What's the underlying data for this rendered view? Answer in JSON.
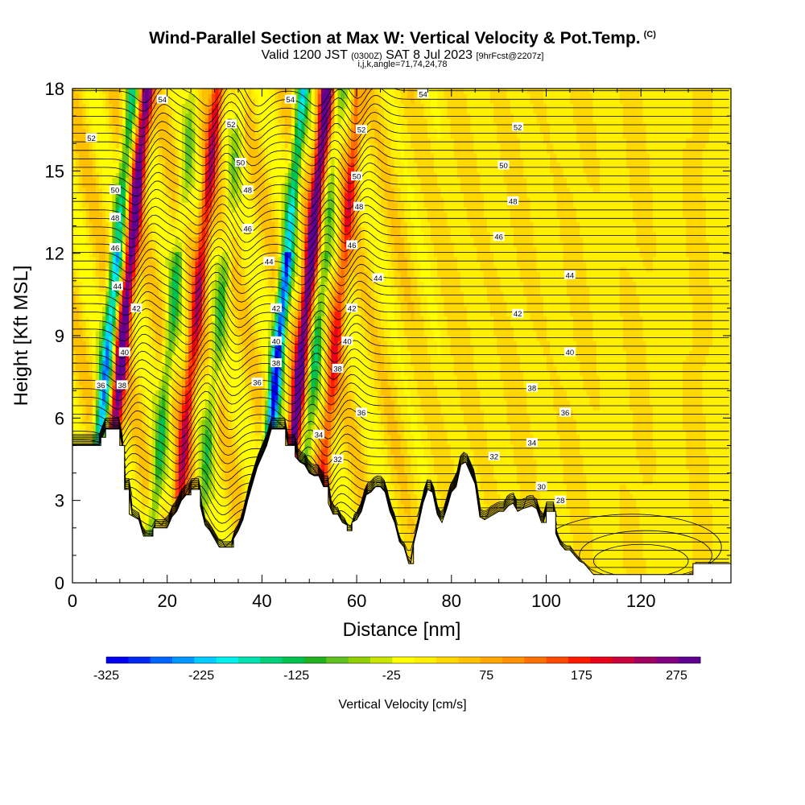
{
  "title": {
    "main": "Wind-Parallel Section at Max W: Vertical Velocity & Pot.Temp.",
    "copyright": "(C)",
    "valid_prefix": "Valid 1200 JST",
    "valid_utc": "(0300Z)",
    "valid_date": "SAT 8 Jul 2023",
    "forecast": "[9hrFcst@2207z]",
    "params": "i,j,k,angle=71,74,24,78"
  },
  "chart_data": {
    "type": "heatmap",
    "xlabel": "Distance [nm]",
    "ylabel": "Height [Kft MSL]",
    "xlim": [
      0,
      139
    ],
    "ylim": [
      0,
      18
    ],
    "xticks": [
      0,
      20,
      40,
      60,
      80,
      100,
      120
    ],
    "yticks": [
      0,
      3,
      6,
      9,
      12,
      15,
      18
    ],
    "colorbar": {
      "label": "Vertical Velocity [cm/s]",
      "range": [
        -325,
        300
      ],
      "ticks": [
        -325,
        -225,
        -125,
        -25,
        75,
        175,
        275
      ],
      "colors": [
        "#0000ee",
        "#0028f0",
        "#0064ff",
        "#0096ff",
        "#00ccff",
        "#00eeee",
        "#00e0b0",
        "#00d078",
        "#00c050",
        "#20b020",
        "#60c020",
        "#90d000",
        "#c8e400",
        "#ffff00",
        "#fff000",
        "#ffd800",
        "#ffc000",
        "#ffa800",
        "#ff9000",
        "#ff7000",
        "#ff4800",
        "#ff1a00",
        "#e8001a",
        "#c8003c",
        "#a00060",
        "#800080",
        "#600090"
      ]
    },
    "updrafts": [
      {
        "x": 12,
        "peak": 290
      },
      {
        "x": 27,
        "peak": 190
      },
      {
        "x": 50,
        "peak": 300
      },
      {
        "x": 57,
        "peak": 150
      }
    ],
    "downdrafts": [
      {
        "x": 9,
        "peak": -260
      },
      {
        "x": 22,
        "peak": -120
      },
      {
        "x": 32,
        "peak": -100
      },
      {
        "x": 45,
        "peak": -325
      },
      {
        "x": 53,
        "peak": -130
      }
    ],
    "contour_labels": [
      {
        "x": 19,
        "y": 17.6,
        "text": "54"
      },
      {
        "x": 46,
        "y": 17.6,
        "text": "54"
      },
      {
        "x": 74,
        "y": 17.8,
        "text": "54"
      },
      {
        "x": 4,
        "y": 16.2,
        "text": "52"
      },
      {
        "x": 33.5,
        "y": 16.7,
        "text": "52"
      },
      {
        "x": 61,
        "y": 16.5,
        "text": "52"
      },
      {
        "x": 94,
        "y": 16.6,
        "text": "52"
      },
      {
        "x": 35.5,
        "y": 15.3,
        "text": "50"
      },
      {
        "x": 60,
        "y": 14.8,
        "text": "50"
      },
      {
        "x": 91,
        "y": 15.2,
        "text": "50"
      },
      {
        "x": 9,
        "y": 14.3,
        "text": "50"
      },
      {
        "x": 37,
        "y": 14.3,
        "text": "48"
      },
      {
        "x": 60.5,
        "y": 13.7,
        "text": "48"
      },
      {
        "x": 93,
        "y": 13.9,
        "text": "48"
      },
      {
        "x": 9,
        "y": 13.3,
        "text": "48"
      },
      {
        "x": 37,
        "y": 12.9,
        "text": "46"
      },
      {
        "x": 59,
        "y": 12.3,
        "text": "46"
      },
      {
        "x": 90,
        "y": 12.6,
        "text": "46"
      },
      {
        "x": 9,
        "y": 12.2,
        "text": "46"
      },
      {
        "x": 41.5,
        "y": 11.7,
        "text": "44"
      },
      {
        "x": 64.5,
        "y": 11.1,
        "text": "44"
      },
      {
        "x": 105,
        "y": 11.2,
        "text": "44"
      },
      {
        "x": 9.5,
        "y": 10.8,
        "text": "44"
      },
      {
        "x": 13.5,
        "y": 10.0,
        "text": "42"
      },
      {
        "x": 43,
        "y": 10.0,
        "text": "42"
      },
      {
        "x": 59,
        "y": 10.0,
        "text": "42"
      },
      {
        "x": 94,
        "y": 9.8,
        "text": "42"
      },
      {
        "x": 11,
        "y": 8.4,
        "text": "40"
      },
      {
        "x": 43,
        "y": 8.8,
        "text": "40"
      },
      {
        "x": 58,
        "y": 8.8,
        "text": "40"
      },
      {
        "x": 105,
        "y": 8.4,
        "text": "40"
      },
      {
        "x": 6,
        "y": 7.2,
        "text": "36"
      },
      {
        "x": 10.5,
        "y": 7.2,
        "text": "38"
      },
      {
        "x": 39,
        "y": 7.3,
        "text": "36"
      },
      {
        "x": 43,
        "y": 8.0,
        "text": "38"
      },
      {
        "x": 56,
        "y": 7.8,
        "text": "38"
      },
      {
        "x": 97,
        "y": 7.1,
        "text": "38"
      },
      {
        "x": 61,
        "y": 6.2,
        "text": "36"
      },
      {
        "x": 104,
        "y": 6.2,
        "text": "36"
      },
      {
        "x": 52,
        "y": 5.4,
        "text": "34"
      },
      {
        "x": 97,
        "y": 5.1,
        "text": "34"
      },
      {
        "x": 56,
        "y": 4.5,
        "text": "32"
      },
      {
        "x": 89,
        "y": 4.6,
        "text": "32"
      },
      {
        "x": 99,
        "y": 3.5,
        "text": "30"
      },
      {
        "x": 103,
        "y": 3.0,
        "text": "28"
      }
    ]
  }
}
